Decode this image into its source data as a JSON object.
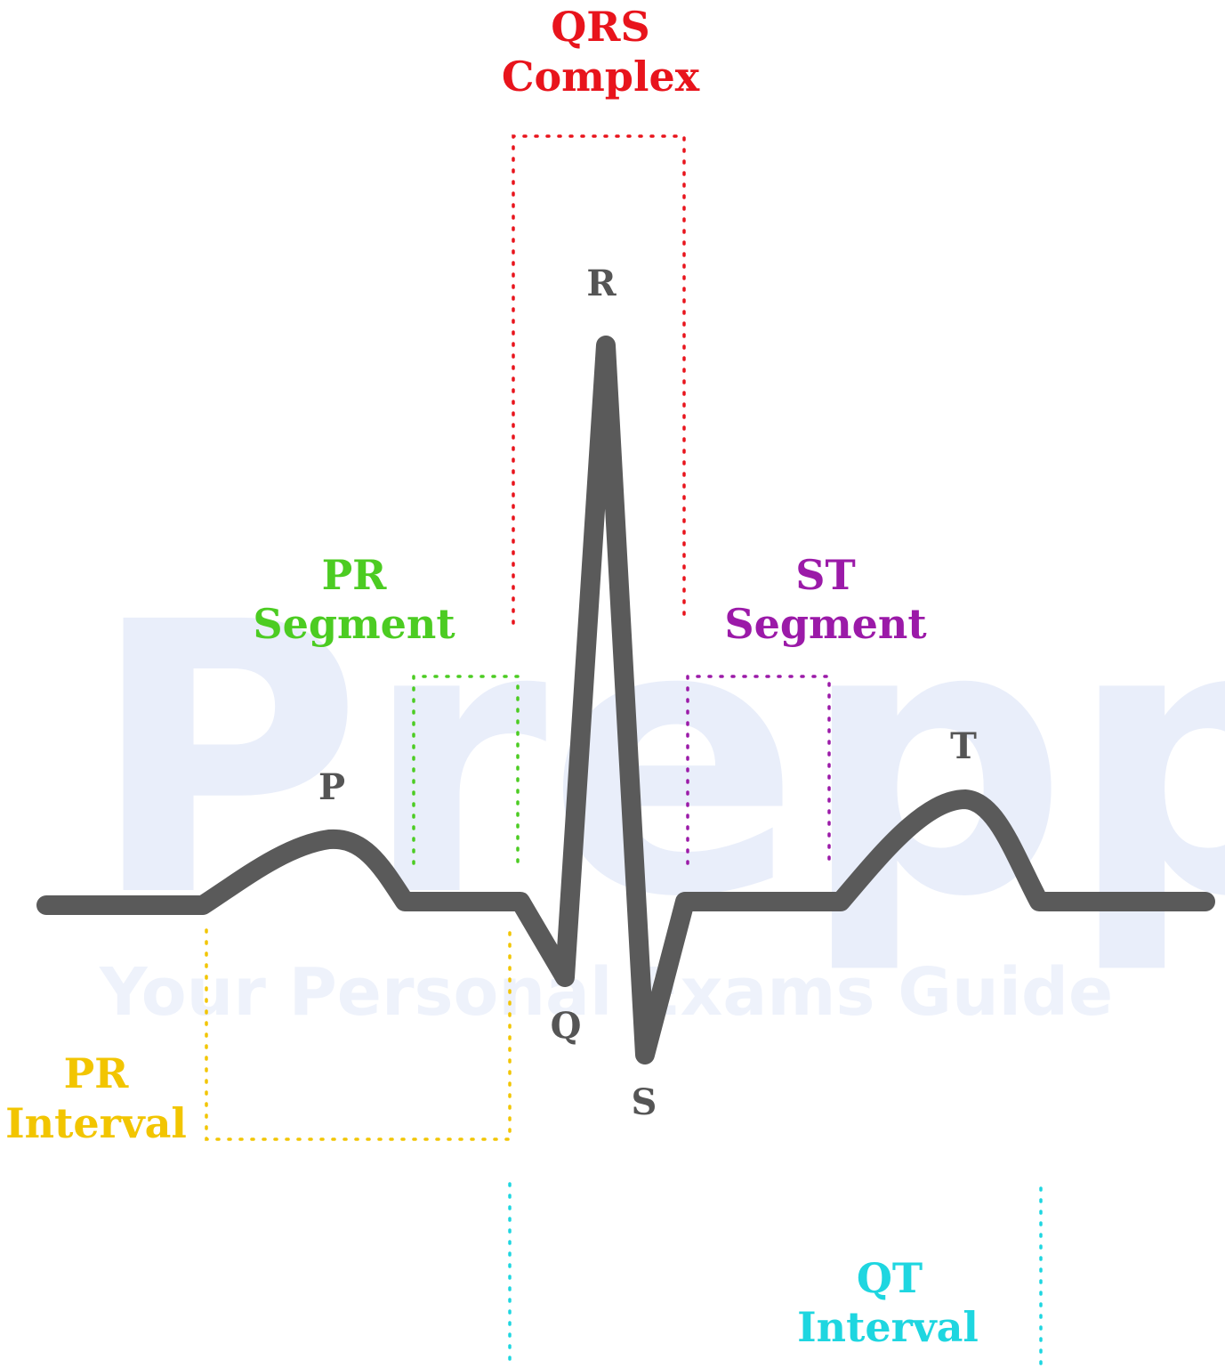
{
  "watermark": {
    "logo": "Prepp",
    "tagline": "Your Personal Exams Guide"
  },
  "waves": [
    {
      "label": "P"
    },
    {
      "label": "Q"
    },
    {
      "label": "R"
    },
    {
      "label": "S"
    },
    {
      "label": "T"
    }
  ],
  "intervals": [
    {
      "lines": [
        "QRS",
        "Complex"
      ]
    },
    {
      "lines": [
        "PR",
        "Segment"
      ]
    },
    {
      "lines": [
        "ST",
        "Segment"
      ]
    },
    {
      "lines": [
        "PR",
        "Interval"
      ]
    },
    {
      "lines": [
        "QT",
        "Interval"
      ]
    }
  ]
}
